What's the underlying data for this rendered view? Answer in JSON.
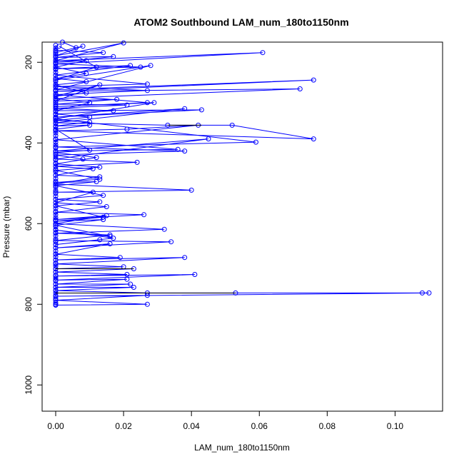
{
  "chart_data": {
    "type": "line",
    "title": "ATOM2 Southbound LAM_num_180to1150nm",
    "xlabel": "LAM_num_180to1150nm",
    "ylabel": "Pressure (mbar)",
    "xlim": [
      -0.004,
      0.114
    ],
    "ylim": [
      1065,
      150
    ],
    "y_reversed": true,
    "x_ticks": [
      "0.00",
      "0.02",
      "0.04",
      "0.06",
      "0.08",
      "0.10"
    ],
    "x_tick_values": [
      0,
      0.02,
      0.04,
      0.06,
      0.08,
      0.1
    ],
    "y_ticks": [
      "200",
      "400",
      "600",
      "800",
      "1000"
    ],
    "y_tick_values": [
      200,
      400,
      600,
      800,
      1000
    ],
    "grid": false,
    "legend": "none",
    "marker": "open-circle",
    "colors": {
      "series": "#0000ff",
      "highlight": "#000000"
    },
    "series": [
      {
        "points": [
          [
            0.0,
            802
          ],
          [
            0.0,
            800
          ],
          [
            0.0,
            796
          ],
          [
            0.0,
            790
          ],
          [
            0.0,
            785
          ],
          [
            0.0,
            778
          ],
          [
            0.0,
            772
          ],
          [
            0.0,
            765
          ],
          [
            0.0,
            758
          ],
          [
            0.0,
            750
          ],
          [
            0.0,
            742
          ],
          [
            0.0,
            735
          ],
          [
            0.0,
            728
          ],
          [
            0.0,
            720
          ],
          [
            0.0,
            712
          ],
          [
            0.0,
            705
          ],
          [
            0.0,
            698
          ],
          [
            0.0,
            690
          ],
          [
            0.0,
            682
          ],
          [
            0.0,
            675
          ],
          [
            0.0,
            668
          ],
          [
            0.0,
            660
          ],
          [
            0.0,
            652
          ],
          [
            0.0,
            645
          ],
          [
            0.0,
            638
          ],
          [
            0.0,
            630
          ],
          [
            0.0,
            622
          ],
          [
            0.0,
            615
          ],
          [
            0.0,
            608
          ],
          [
            0.0,
            600
          ],
          [
            0.0,
            592
          ],
          [
            0.0,
            585
          ],
          [
            0.0,
            578
          ],
          [
            0.0,
            570
          ],
          [
            0.0,
            562
          ],
          [
            0.0,
            555
          ],
          [
            0.0,
            548
          ],
          [
            0.0,
            540
          ],
          [
            0.0,
            532
          ],
          [
            0.0,
            525
          ],
          [
            0.0,
            518
          ],
          [
            0.0,
            510
          ],
          [
            0.0,
            502
          ],
          [
            0.0,
            495
          ],
          [
            0.0,
            488
          ],
          [
            0.0,
            480
          ],
          [
            0.0,
            472
          ],
          [
            0.0,
            465
          ],
          [
            0.0,
            458
          ],
          [
            0.0,
            450
          ],
          [
            0.0,
            442
          ],
          [
            0.0,
            435
          ],
          [
            0.0,
            428
          ],
          [
            0.0,
            420
          ],
          [
            0.0,
            412
          ],
          [
            0.0,
            405
          ],
          [
            0.0,
            398
          ],
          [
            0.0,
            390
          ],
          [
            0.0,
            382
          ],
          [
            0.0,
            375
          ],
          [
            0.0,
            368
          ],
          [
            0.0,
            360
          ],
          [
            0.0,
            352
          ],
          [
            0.0,
            345
          ],
          [
            0.0,
            338
          ],
          [
            0.0,
            330
          ],
          [
            0.0,
            322
          ],
          [
            0.0,
            315
          ],
          [
            0.0,
            308
          ],
          [
            0.0,
            300
          ],
          [
            0.0,
            292
          ],
          [
            0.0,
            285
          ],
          [
            0.0,
            278
          ],
          [
            0.0,
            270
          ],
          [
            0.0,
            262
          ],
          [
            0.0,
            255
          ],
          [
            0.0,
            248
          ],
          [
            0.0,
            240
          ],
          [
            0.0,
            232
          ],
          [
            0.0,
            225
          ],
          [
            0.0,
            218
          ],
          [
            0.0,
            210
          ],
          [
            0.0,
            202
          ],
          [
            0.0,
            195
          ],
          [
            0.0,
            188
          ],
          [
            0.0,
            180
          ],
          [
            0.0,
            172
          ],
          [
            0.0,
            165
          ],
          [
            0.0,
            158
          ]
        ]
      },
      {
        "points": [
          [
            0.001,
            160
          ],
          [
            0.012,
            212
          ],
          [
            0.0,
            244
          ],
          [
            0.028,
            208
          ],
          [
            0.0,
            268
          ],
          [
            0.076,
            244
          ],
          [
            0.0,
            272
          ],
          [
            0.072,
            266
          ],
          [
            0.0,
            290
          ],
          [
            0.01,
            300
          ],
          [
            0.0,
            320
          ],
          [
            0.043,
            318
          ],
          [
            0.0,
            336
          ],
          [
            0.038,
            315
          ],
          [
            0.0,
            350
          ],
          [
            0.033,
            356
          ],
          [
            0.052,
            356
          ],
          [
            0.076,
            390
          ],
          [
            0.0,
            370
          ],
          [
            0.021,
            366
          ],
          [
            0.042,
            356
          ],
          [
            0.0,
            392
          ],
          [
            0.036,
            416
          ],
          [
            0.0,
            420
          ],
          [
            0.045,
            390
          ],
          [
            0.0,
            440
          ],
          [
            0.024,
            448
          ],
          [
            0.0,
            458
          ],
          [
            0.011,
            464
          ],
          [
            0.0,
            480
          ],
          [
            0.013,
            484
          ],
          [
            0.0,
            502
          ],
          [
            0.04,
            517
          ],
          [
            0.0,
            522
          ],
          [
            0.011,
            522
          ],
          [
            0.0,
            548
          ],
          [
            0.015,
            558
          ],
          [
            0.0,
            572
          ],
          [
            0.026,
            578
          ],
          [
            0.0,
            590
          ],
          [
            0.015,
            580
          ],
          [
            0.0,
            600
          ],
          [
            0.032,
            614
          ],
          [
            0.0,
            624
          ],
          [
            0.016,
            628
          ],
          [
            0.0,
            642
          ],
          [
            0.034,
            645
          ],
          [
            0.0,
            660
          ],
          [
            0.016,
            650
          ],
          [
            0.0,
            676
          ],
          [
            0.019,
            684
          ],
          [
            0.0,
            690
          ],
          [
            0.038,
            684
          ],
          [
            0.0,
            700
          ],
          [
            0.02,
            707
          ],
          [
            0.0,
            712
          ],
          [
            0.023,
            712
          ],
          [
            0.0,
            720
          ],
          [
            0.021,
            726
          ],
          [
            0.0,
            730
          ],
          [
            0.041,
            726
          ],
          [
            0.0,
            740
          ],
          [
            0.021,
            738
          ],
          [
            0.0,
            750
          ],
          [
            0.022,
            750
          ],
          [
            0.0,
            758
          ],
          [
            0.023,
            758
          ],
          [
            0.0,
            766
          ],
          [
            0.027,
            772
          ],
          [
            0.053,
            772
          ],
          [
            0.108,
            772
          ],
          [
            0.11,
            772
          ],
          [
            0.0,
            780
          ],
          [
            0.027,
            778
          ],
          [
            0.0,
            790
          ],
          [
            0.027,
            800
          ],
          [
            0.0,
            802
          ]
        ]
      },
      {
        "points": [
          [
            0.0,
            170
          ],
          [
            0.014,
            176
          ],
          [
            0.0,
            188
          ],
          [
            0.017,
            186
          ],
          [
            0.0,
            200
          ],
          [
            0.009,
            196
          ],
          [
            0.0,
            212
          ],
          [
            0.009,
            228
          ],
          [
            0.0,
            240
          ],
          [
            0.009,
            248
          ],
          [
            0.0,
            256
          ],
          [
            0.009,
            276
          ],
          [
            0.0,
            284
          ],
          [
            0.013,
            256
          ],
          [
            0.0,
            296
          ],
          [
            0.018,
            292
          ],
          [
            0.0,
            304
          ],
          [
            0.021,
            306
          ],
          [
            0.0,
            314
          ],
          [
            0.017,
            320
          ],
          [
            0.0,
            328
          ],
          [
            0.01,
            336
          ],
          [
            0.0,
            344
          ],
          [
            0.01,
            348
          ],
          [
            0.0,
            358
          ],
          [
            0.01,
            356
          ],
          [
            0.0,
            366
          ],
          [
            0.01,
            418
          ],
          [
            0.0,
            424
          ],
          [
            0.012,
            436
          ],
          [
            0.0,
            452
          ],
          [
            0.013,
            460
          ],
          [
            0.0,
            468
          ],
          [
            0.013,
            490
          ],
          [
            0.0,
            498
          ],
          [
            0.012,
            496
          ],
          [
            0.0,
            506
          ],
          [
            0.014,
            530
          ],
          [
            0.0,
            540
          ],
          [
            0.013,
            546
          ],
          [
            0.0,
            556
          ],
          [
            0.014,
            584
          ],
          [
            0.0,
            594
          ],
          [
            0.014,
            590
          ],
          [
            0.0,
            604
          ],
          [
            0.016,
            632
          ],
          [
            0.0,
            616
          ],
          [
            0.017,
            636
          ],
          [
            0.0,
            652
          ],
          [
            0.013,
            640
          ]
        ]
      },
      {
        "points": [
          [
            0.002,
            150
          ],
          [
            0.006,
            164
          ],
          [
            0.0,
            176
          ],
          [
            0.008,
            160
          ],
          [
            0.0,
            184
          ],
          [
            0.02,
            152
          ],
          [
            0.0,
            196
          ],
          [
            0.061,
            176
          ],
          [
            0.0,
            204
          ],
          [
            0.025,
            212
          ],
          [
            0.0,
            216
          ],
          [
            0.022,
            208
          ],
          [
            0.0,
            232
          ],
          [
            0.027,
            254
          ],
          [
            0.0,
            260
          ],
          [
            0.027,
            270
          ],
          [
            0.0,
            280
          ],
          [
            0.027,
            300
          ],
          [
            0.0,
            310
          ],
          [
            0.029,
            300
          ],
          [
            0.0,
            340
          ],
          [
            0.059,
            398
          ],
          [
            0.0,
            410
          ],
          [
            0.038,
            420
          ],
          [
            0.0,
            430
          ],
          [
            0.008,
            440
          ]
        ]
      }
    ],
    "highlight_segments": [
      {
        "from": [
          0.033,
          356
        ],
        "to": [
          0.043,
          356
        ]
      },
      {
        "from": [
          0.0,
          712
        ],
        "to": [
          0.023,
          712
        ]
      },
      {
        "from": [
          0.0,
          772
        ],
        "to": [
          0.053,
          772
        ]
      }
    ]
  }
}
